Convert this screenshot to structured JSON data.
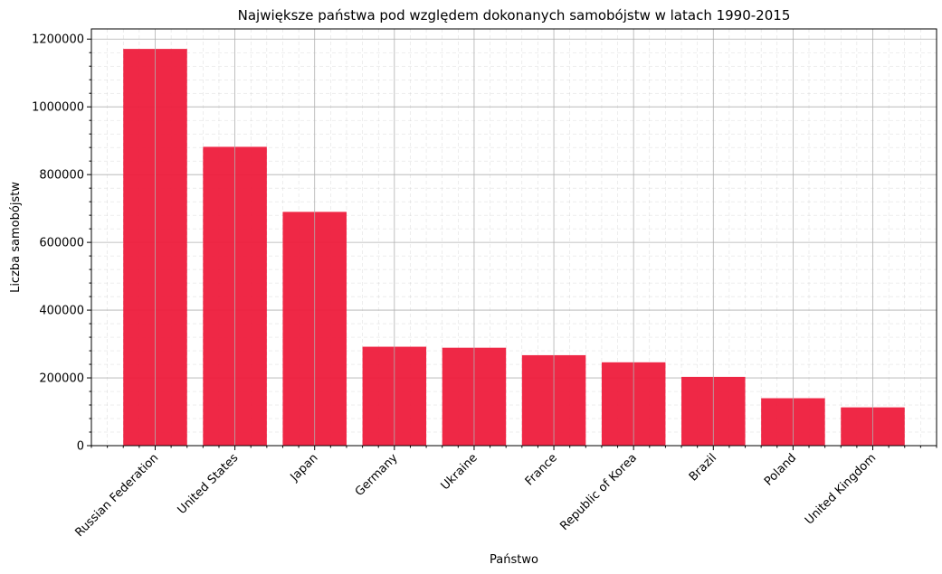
{
  "chart_data": {
    "type": "bar",
    "title": "Największe państwa pod względem dokonanych samobójstw w latach 1990-2015",
    "xlabel": "Państwo",
    "ylabel": "Liczba samobójstw",
    "categories": [
      "Russian Federation",
      "United States",
      "Japan",
      "Germany",
      "Ukraine",
      "France",
      "Republic of Korea",
      "Brazil",
      "Poland",
      "United Kingdom"
    ],
    "values": [
      1171000,
      882000,
      690000,
      292000,
      289000,
      267000,
      246000,
      203000,
      140000,
      113000
    ],
    "ylim": [
      0,
      1230000
    ],
    "yticks": [
      0,
      200000,
      400000,
      600000,
      800000,
      1000000,
      1200000
    ],
    "ytick_labels": [
      "0",
      "200000",
      "400000",
      "600000",
      "800000",
      "1000000",
      "1200000"
    ],
    "grid": true,
    "bar_color": "#ee1c3c"
  }
}
